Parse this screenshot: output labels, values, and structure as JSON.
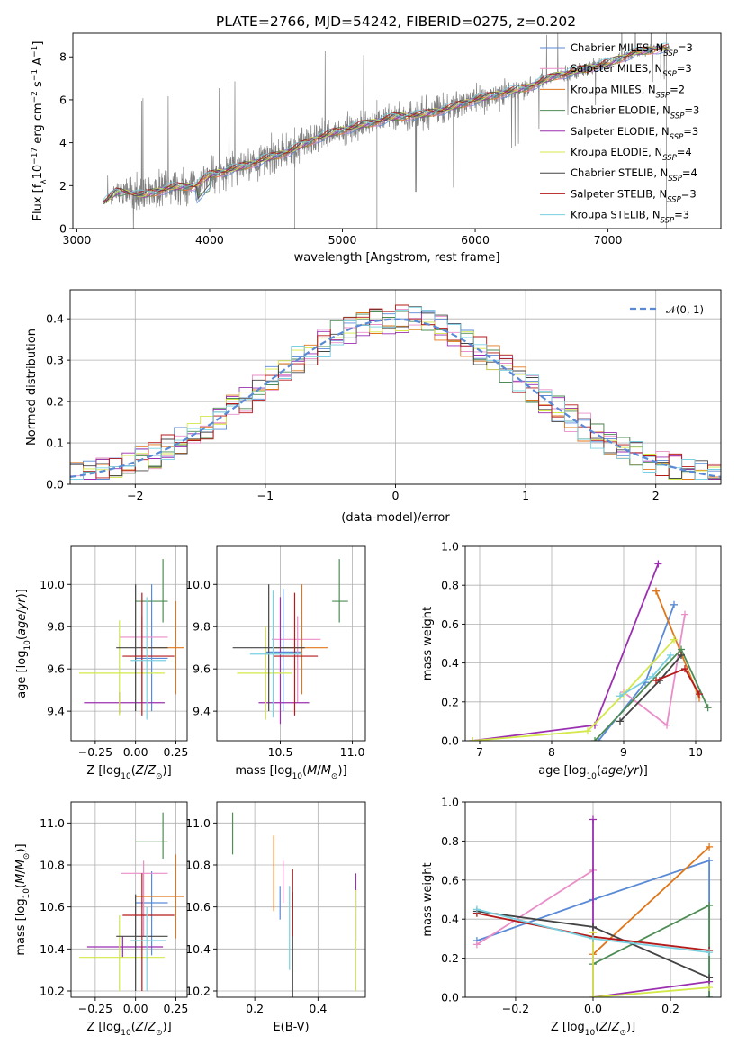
{
  "figure": {
    "title": "PLATE=2766, MJD=54242, FIBERID=0275, z=0.202"
  },
  "models": [
    {
      "name": "Chabrier MILES",
      "label": "Chabrier MILES, N",
      "sub": "SSP",
      "n": "=3",
      "color": "#5a8ad6"
    },
    {
      "name": "Salpeter MILES",
      "label": "Salpeter MILES, N",
      "sub": "SSP",
      "n": "=3",
      "color": "#e98ec8"
    },
    {
      "name": "Kroupa MILES",
      "label": "Kroupa MILES, N",
      "sub": "SSP",
      "n": "=2",
      "color": "#e0761a"
    },
    {
      "name": "Chabrier ELODIE",
      "label": "Chabrier ELODIE, N",
      "sub": "SSP",
      "n": "=3",
      "color": "#4e8c55"
    },
    {
      "name": "Salpeter ELODIE",
      "label": "Salpeter ELODIE, N",
      "sub": "SSP",
      "n": "=3",
      "color": "#9b2fb0"
    },
    {
      "name": "Kroupa ELODIE",
      "label": "Kroupa ELODIE, N",
      "sub": "SSP",
      "n": "=4",
      "color": "#d4e84a"
    },
    {
      "name": "Chabrier STELIB",
      "label": "Chabrier STELIB, N",
      "sub": "SSP",
      "n": "=4",
      "color": "#444444"
    },
    {
      "name": "Salpeter STELIB",
      "label": "Salpeter STELIB, N",
      "sub": "SSP",
      "n": "=3",
      "color": "#b51a1a"
    },
    {
      "name": "Kroupa STELIB",
      "label": "Kroupa STELIB, N",
      "sub": "SSP",
      "n": "=3",
      "color": "#7ad0e0"
    }
  ],
  "chart_data": [
    {
      "id": "spectrum",
      "type": "line",
      "xlabel": "wavelength [Angstrom, rest frame]",
      "ylabel": "Flux [f",
      "xlim": [
        2970,
        7850
      ],
      "ylim": [
        0,
        9.1
      ],
      "xticks": [
        3000,
        4000,
        5000,
        6000,
        7000
      ],
      "yticks": [
        0,
        2,
        4,
        6,
        8
      ],
      "data_color": "#808080",
      "continuum": [
        [
          3200,
          1.2
        ],
        [
          3300,
          1.7
        ],
        [
          3500,
          1.55
        ],
        [
          3700,
          1.9
        ],
        [
          3900,
          2.0
        ],
        [
          4000,
          2.5
        ],
        [
          4200,
          2.8
        ],
        [
          4400,
          3.2
        ],
        [
          4600,
          3.6
        ],
        [
          4800,
          4.2
        ],
        [
          5000,
          4.6
        ],
        [
          5200,
          4.9
        ],
        [
          5400,
          5.2
        ],
        [
          5600,
          5.3
        ],
        [
          5800,
          5.6
        ],
        [
          6000,
          6.0
        ],
        [
          6200,
          6.3
        ],
        [
          6400,
          6.6
        ],
        [
          6600,
          7.1
        ],
        [
          6800,
          7.4
        ],
        [
          7000,
          7.7
        ],
        [
          7200,
          8.2
        ],
        [
          7400,
          8.4
        ]
      ],
      "noise_amp": [
        [
          3200,
          0.2
        ],
        [
          3500,
          1.3
        ],
        [
          4000,
          1.1
        ],
        [
          4600,
          1.3
        ],
        [
          5200,
          0.9
        ],
        [
          5800,
          1.1
        ],
        [
          6500,
          0.6
        ],
        [
          7500,
          0.4
        ]
      ],
      "legend_position": "upper right"
    },
    {
      "id": "residuals",
      "type": "line",
      "xlabel": "(data-model)/error",
      "ylabel": "Normed distribution",
      "xlim": [
        -2.5,
        2.5
      ],
      "ylim": [
        0,
        0.47
      ],
      "xticks": [
        -2,
        -1,
        0,
        1,
        2
      ],
      "yticks": [
        0,
        0.1,
        0.2,
        0.3,
        0.4
      ],
      "gaussian_label": "𝒩(0, 1)",
      "gaussian_color": "#5a8ad6",
      "bin_width": 0.1,
      "grid": true,
      "legend_position": "upper right"
    },
    {
      "id": "z-age",
      "type": "scatter",
      "xlabel": "Z [log",
      "ylabel": "age  [log",
      "xlim": [
        -0.4,
        0.32
      ],
      "ylim": [
        9.26,
        10.18
      ],
      "xticks": [
        -0.25,
        0.0,
        0.25
      ],
      "yticks": [
        9.4,
        9.6,
        9.8,
        10.0
      ],
      "grid": true,
      "points": [
        {
          "m": 0,
          "x": 0.1,
          "xerr": [
            0.1,
            0.1
          ],
          "y": 9.65,
          "yerr": [
            0.25,
            0.35
          ]
        },
        {
          "m": 1,
          "x": 0.04,
          "xerr": [
            0.14,
            0.16
          ],
          "y": 9.75,
          "yerr": [
            0.3,
            0.1
          ]
        },
        {
          "m": 2,
          "x": 0.25,
          "xerr": [
            0.2,
            0.05
          ],
          "y": 9.7,
          "yerr": [
            0.22,
            0.22
          ]
        },
        {
          "m": 3,
          "x": 0.17,
          "xerr": [
            0.17,
            0.03
          ],
          "y": 9.92,
          "yerr": [
            0.1,
            0.2
          ]
        },
        {
          "m": 4,
          "x": -0.1,
          "xerr": [
            0.22,
            0.28
          ],
          "y": 9.44,
          "yerr": [
            0.05,
            0.05
          ]
        },
        {
          "m": 5,
          "x": -0.1,
          "xerr": [
            0.25,
            0.28
          ],
          "y": 9.58,
          "yerr": [
            0.2,
            0.25
          ]
        },
        {
          "m": 6,
          "x": 0.0,
          "xerr": [
            0.12,
            0.2
          ],
          "y": 9.7,
          "yerr": [
            0.3,
            0.3
          ]
        },
        {
          "m": 7,
          "x": 0.04,
          "xerr": [
            0.12,
            0.2
          ],
          "y": 9.66,
          "yerr": [
            0.28,
            0.3
          ]
        },
        {
          "m": 8,
          "x": 0.07,
          "xerr": [
            0.1,
            0.12
          ],
          "y": 9.64,
          "yerr": [
            0.28,
            0.3
          ]
        }
      ]
    },
    {
      "id": "mass-age",
      "type": "scatter",
      "xlabel": "mass [log",
      "ylabel": "",
      "xlim": [
        10.06,
        11.09
      ],
      "ylim": [
        9.26,
        10.18
      ],
      "xticks": [
        10.5,
        11.0
      ],
      "yticks": [
        9.4,
        9.6,
        9.8,
        10.0
      ],
      "grid": true,
      "points": [
        {
          "m": 0,
          "x": 10.52,
          "xerr": [
            0.12,
            0.12
          ],
          "y": 9.68,
          "yerr": [
            0.28,
            0.3
          ]
        },
        {
          "m": 1,
          "x": 10.62,
          "xerr": [
            0.18,
            0.16
          ],
          "y": 9.74,
          "yerr": [
            0.3,
            0.11
          ]
        },
        {
          "m": 2,
          "x": 10.65,
          "xerr": [
            0.2,
            0.18
          ],
          "y": 9.7,
          "yerr": [
            0.22,
            0.3
          ]
        },
        {
          "m": 3,
          "x": 10.91,
          "xerr": [
            0.05,
            0.06
          ],
          "y": 9.92,
          "yerr": [
            0.1,
            0.2
          ]
        },
        {
          "m": 4,
          "x": 10.5,
          "xerr": [
            0.15,
            0.2
          ],
          "y": 9.44,
          "yerr": [
            0.1,
            0.5
          ]
        },
        {
          "m": 5,
          "x": 10.4,
          "xerr": [
            0.2,
            0.18
          ],
          "y": 9.58,
          "yerr": [
            0.22,
            0.22
          ]
        },
        {
          "m": 6,
          "x": 10.42,
          "xerr": [
            0.25,
            0.25
          ],
          "y": 9.7,
          "yerr": [
            0.3,
            0.3
          ]
        },
        {
          "m": 7,
          "x": 10.6,
          "xerr": [
            0.15,
            0.16
          ],
          "y": 9.66,
          "yerr": [
            0.28,
            0.3
          ]
        },
        {
          "m": 8,
          "x": 10.45,
          "xerr": [
            0.16,
            0.2
          ],
          "y": 9.67,
          "yerr": [
            0.3,
            0.3
          ]
        }
      ]
    },
    {
      "id": "age-weight",
      "type": "line",
      "xlabel": "age  [log",
      "ylabel": "mass weight",
      "xlim": [
        6.8,
        10.35
      ],
      "ylim": [
        0,
        1.0
      ],
      "xticks": [
        7,
        8,
        9,
        10
      ],
      "yticks": [
        0.0,
        0.2,
        0.4,
        0.6,
        0.8,
        1.0
      ],
      "grid": true,
      "series": [
        {
          "m": 0,
          "x": [
            8.65,
            9.3,
            9.7
          ],
          "y": [
            0.0,
            0.3,
            0.7
          ]
        },
        {
          "m": 1,
          "x": [
            9.0,
            9.6,
            9.85
          ],
          "y": [
            0.25,
            0.08,
            0.65
          ]
        },
        {
          "m": 2,
          "x": [
            9.45,
            10.05
          ],
          "y": [
            0.77,
            0.22
          ]
        },
        {
          "m": 3,
          "x": [
            8.6,
            9.8,
            10.17
          ],
          "y": [
            0.0,
            0.47,
            0.17
          ]
        },
        {
          "m": 4,
          "x": [
            6.9,
            8.6,
            9.48
          ],
          "y": [
            0.0,
            0.08,
            0.91
          ]
        },
        {
          "m": 5,
          "x": [
            6.9,
            8.5,
            9.0,
            9.7
          ],
          "y": [
            0.0,
            0.05,
            0.24,
            0.52
          ]
        },
        {
          "m": 6,
          "x": [
            8.95,
            9.5,
            9.8
          ],
          "y": [
            0.1,
            0.31,
            0.44
          ]
        },
        {
          "m": 7,
          "x": [
            9.45,
            9.85,
            10.05
          ],
          "y": [
            0.31,
            0.37,
            0.24
          ]
        },
        {
          "m": 8,
          "x": [
            8.95,
            9.4,
            9.65
          ],
          "y": [
            0.23,
            0.33,
            0.44
          ]
        }
      ]
    },
    {
      "id": "z-mass",
      "type": "scatter",
      "xlabel": "Z [log",
      "ylabel": "mass [log",
      "xlim": [
        -0.4,
        0.32
      ],
      "ylim": [
        10.17,
        11.1
      ],
      "xticks": [
        -0.25,
        0.0,
        0.25
      ],
      "yticks": [
        10.2,
        10.4,
        10.6,
        10.8,
        11.0
      ],
      "grid": true,
      "points": [
        {
          "m": 0,
          "x": 0.1,
          "xerr": [
            0.1,
            0.1
          ],
          "y": 10.62,
          "yerr": [
            0.25,
            0.15
          ]
        },
        {
          "m": 1,
          "x": 0.05,
          "xerr": [
            0.14,
            0.15
          ],
          "y": 10.76,
          "yerr": [
            0.3,
            0.06
          ]
        },
        {
          "m": 2,
          "x": 0.25,
          "xerr": [
            0.25,
            0.05
          ],
          "y": 10.65,
          "yerr": [
            0.2,
            0.2
          ]
        },
        {
          "m": 3,
          "x": 0.17,
          "xerr": [
            0.17,
            0.03
          ],
          "y": 10.91,
          "yerr": [
            0.08,
            0.14
          ]
        },
        {
          "m": 4,
          "x": -0.08,
          "xerr": [
            0.22,
            0.25
          ],
          "y": 10.41,
          "yerr": [
            0.05,
            0.05
          ]
        },
        {
          "m": 5,
          "x": -0.1,
          "xerr": [
            0.25,
            0.28
          ],
          "y": 10.36,
          "yerr": [
            0.16,
            0.2
          ]
        },
        {
          "m": 6,
          "x": 0.0,
          "xerr": [
            0.12,
            0.2
          ],
          "y": 10.46,
          "yerr": [
            0.26,
            0.2
          ]
        },
        {
          "m": 7,
          "x": 0.04,
          "xerr": [
            0.12,
            0.2
          ],
          "y": 10.56,
          "yerr": [
            0.36,
            0.2
          ]
        },
        {
          "m": 8,
          "x": 0.07,
          "xerr": [
            0.1,
            0.12
          ],
          "y": 10.44,
          "yerr": [
            0.24,
            0.16
          ]
        }
      ]
    },
    {
      "id": "ebv-mass",
      "type": "scatter",
      "xlabel": "E(B-V)",
      "ylabel": "",
      "xlim": [
        0.08,
        0.55
      ],
      "ylim": [
        10.17,
        11.1
      ],
      "xticks": [
        0.2,
        0.4
      ],
      "yticks": [
        10.2,
        10.4,
        10.6,
        10.8,
        11.0
      ],
      "grid": true,
      "points": [
        {
          "m": 0,
          "x": 0.28,
          "xerr": [
            0.0,
            0.0
          ],
          "y": 10.62,
          "yerr": [
            0.08,
            0.08
          ]
        },
        {
          "m": 1,
          "x": 0.29,
          "xerr": [
            0.0,
            0.0
          ],
          "y": 10.72,
          "yerr": [
            0.1,
            0.1
          ]
        },
        {
          "m": 2,
          "x": 0.26,
          "xerr": [
            0.0,
            0.0
          ],
          "y": 10.76,
          "yerr": [
            0.18,
            0.18
          ]
        },
        {
          "m": 3,
          "x": 0.13,
          "xerr": [
            0.0,
            0.0
          ],
          "y": 10.95,
          "yerr": [
            0.1,
            0.1
          ]
        },
        {
          "m": 4,
          "x": 0.52,
          "xerr": [
            0.0,
            0.0
          ],
          "y": 10.6,
          "yerr": [
            0.16,
            0.16
          ]
        },
        {
          "m": 5,
          "x": 0.52,
          "xerr": [
            0.0,
            0.0
          ],
          "y": 10.38,
          "yerr": [
            0.18,
            0.3
          ]
        },
        {
          "m": 6,
          "x": 0.32,
          "xerr": [
            0.0,
            0.0
          ],
          "y": 10.42,
          "yerr": [
            0.25,
            0.25
          ]
        },
        {
          "m": 7,
          "x": 0.32,
          "xerr": [
            0.0,
            0.0
          ],
          "y": 10.62,
          "yerr": [
            0.16,
            0.16
          ]
        },
        {
          "m": 8,
          "x": 0.31,
          "xerr": [
            0.0,
            0.0
          ],
          "y": 10.5,
          "yerr": [
            0.2,
            0.2
          ]
        }
      ]
    },
    {
      "id": "z-weight",
      "type": "line",
      "xlabel": "Z [log",
      "ylabel": "mass weight",
      "xlim": [
        -0.33,
        0.33
      ],
      "ylim": [
        0,
        1.0
      ],
      "xticks": [
        -0.2,
        0.0,
        0.2
      ],
      "yticks": [
        0.0,
        0.2,
        0.4,
        0.6,
        0.8,
        1.0
      ],
      "grid": true,
      "series": [
        {
          "m": 0,
          "x": [
            -0.3,
            0.0,
            0.3,
            0.3
          ],
          "y": [
            0.29,
            0.5,
            0.7,
            0.0
          ]
        },
        {
          "m": 1,
          "x": [
            -0.3,
            0.0
          ],
          "y": [
            0.27,
            0.65
          ]
        },
        {
          "m": 2,
          "x": [
            0.0,
            0.3
          ],
          "y": [
            0.22,
            0.77
          ]
        },
        {
          "m": 3,
          "x": [
            0.0,
            0.3,
            0.3
          ],
          "y": [
            0.17,
            0.47,
            0.0
          ]
        },
        {
          "m": 4,
          "x": [
            0.0,
            0.0,
            0.3
          ],
          "y": [
            0.91,
            0.0,
            0.08
          ]
        },
        {
          "m": 5,
          "x": [
            0.0,
            0.0,
            0.3
          ],
          "y": [
            0.33,
            0.0,
            0.05
          ]
        },
        {
          "m": 6,
          "x": [
            -0.3,
            0.0,
            0.3
          ],
          "y": [
            0.44,
            0.36,
            0.1
          ]
        },
        {
          "m": 7,
          "x": [
            -0.3,
            0.0,
            0.3
          ],
          "y": [
            0.43,
            0.31,
            0.24
          ]
        },
        {
          "m": 8,
          "x": [
            -0.3,
            0.0,
            0.3
          ],
          "y": [
            0.45,
            0.3,
            0.23
          ]
        }
      ]
    }
  ]
}
